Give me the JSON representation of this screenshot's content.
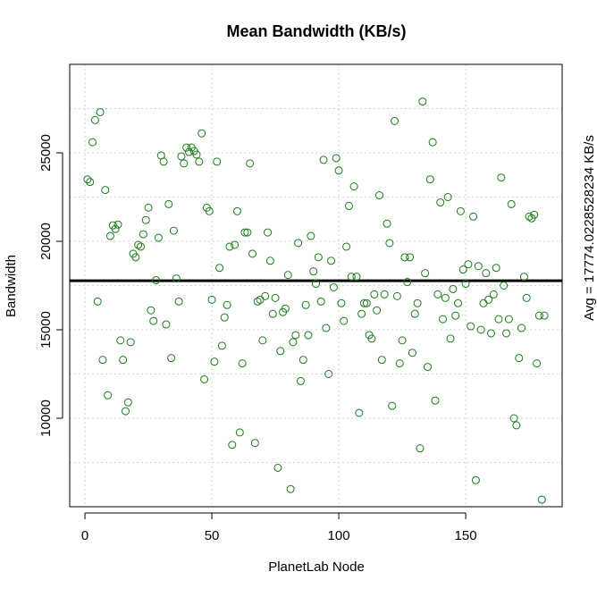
{
  "chart_data": {
    "type": "scatter",
    "title": "Mean Bandwidth (KB/s)",
    "xlabel": "PlanetLab Node",
    "ylabel": "Bandwidth",
    "xlim": [
      -6,
      188
    ],
    "ylim": [
      5000,
      30000
    ],
    "x_ticks": [
      0,
      50,
      100,
      150
    ],
    "y_ticks": [
      10000,
      15000,
      20000,
      25000
    ],
    "x_tick_labels": [
      "0",
      "50",
      "100",
      "150"
    ],
    "y_tick_labels": [
      "10000",
      "15000",
      "20000",
      "25000"
    ],
    "grid": true,
    "point_color": "#1a7a1a",
    "reference_line": {
      "value": 17774.0228528234,
      "label": "Avg = 17774.0228528234 KB/s",
      "color": "#000000"
    },
    "series": [
      {
        "points": [
          [
            1,
            23500
          ],
          [
            2,
            23350
          ],
          [
            3,
            25600
          ],
          [
            4,
            26850
          ],
          [
            5,
            16600
          ],
          [
            6,
            27300
          ],
          [
            7,
            13300
          ],
          [
            8,
            22900
          ],
          [
            9,
            11300
          ],
          [
            10,
            20300
          ],
          [
            11,
            20900
          ],
          [
            12,
            20700
          ],
          [
            13,
            20950
          ],
          [
            14,
            14400
          ],
          [
            15,
            13300
          ],
          [
            16,
            10400
          ],
          [
            17,
            10900
          ],
          [
            18,
            14300
          ],
          [
            19,
            19300
          ],
          [
            20,
            19100
          ],
          [
            21,
            19800
          ],
          [
            22,
            19700
          ],
          [
            23,
            20400
          ],
          [
            24,
            21200
          ],
          [
            25,
            21900
          ],
          [
            26,
            16100
          ],
          [
            27,
            15500
          ],
          [
            28,
            17800
          ],
          [
            29,
            20200
          ],
          [
            30,
            24850
          ],
          [
            31,
            24500
          ],
          [
            32,
            15300
          ],
          [
            33,
            22100
          ],
          [
            34,
            13400
          ],
          [
            35,
            20600
          ],
          [
            36,
            17900
          ],
          [
            37,
            16600
          ],
          [
            38,
            24800
          ],
          [
            39,
            24400
          ],
          [
            40,
            25300
          ],
          [
            41,
            25050
          ],
          [
            42,
            25300
          ],
          [
            43,
            25100
          ],
          [
            44,
            24900
          ],
          [
            45,
            24500
          ],
          [
            46,
            26100
          ],
          [
            47,
            12200
          ],
          [
            48,
            21900
          ],
          [
            49,
            21700
          ],
          [
            50,
            16700
          ],
          [
            51,
            13200
          ],
          [
            52,
            24500
          ],
          [
            53,
            18500
          ],
          [
            54,
            14100
          ],
          [
            55,
            15700
          ],
          [
            56,
            16400
          ],
          [
            57,
            19700
          ],
          [
            58,
            8500
          ],
          [
            59,
            19800
          ],
          [
            60,
            21700
          ],
          [
            61,
            9200
          ],
          [
            62,
            13100
          ],
          [
            63,
            20500
          ],
          [
            64,
            20500
          ],
          [
            65,
            24400
          ],
          [
            66,
            19300
          ],
          [
            67,
            8600
          ],
          [
            68,
            16600
          ],
          [
            69,
            16700
          ],
          [
            70,
            14400
          ],
          [
            71,
            16900
          ],
          [
            72,
            20500
          ],
          [
            73,
            18900
          ],
          [
            74,
            15900
          ],
          [
            75,
            16800
          ],
          [
            76,
            7200
          ],
          [
            77,
            13800
          ],
          [
            78,
            16000
          ],
          [
            79,
            16200
          ],
          [
            80,
            18100
          ],
          [
            81,
            6000
          ],
          [
            82,
            14300
          ],
          [
            83,
            14700
          ],
          [
            84,
            19900
          ],
          [
            85,
            12100
          ],
          [
            86,
            13300
          ],
          [
            87,
            16400
          ],
          [
            88,
            14700
          ],
          [
            89,
            20300
          ],
          [
            90,
            18300
          ],
          [
            91,
            17600
          ],
          [
            92,
            19100
          ],
          [
            93,
            16600
          ],
          [
            94,
            24600
          ],
          [
            95,
            15100
          ],
          [
            96,
            12500
          ],
          [
            97,
            18900
          ],
          [
            98,
            17400
          ],
          [
            99,
            24700
          ],
          [
            100,
            24000
          ],
          [
            101,
            16500
          ],
          [
            102,
            15500
          ],
          [
            103,
            19700
          ],
          [
            104,
            22000
          ],
          [
            105,
            18000
          ],
          [
            106,
            23100
          ],
          [
            107,
            18000
          ],
          [
            108,
            10300
          ],
          [
            109,
            15900
          ],
          [
            110,
            16500
          ],
          [
            111,
            16500
          ],
          [
            112,
            14700
          ],
          [
            113,
            14500
          ],
          [
            114,
            17000
          ],
          [
            115,
            16100
          ],
          [
            116,
            22600
          ],
          [
            117,
            13300
          ],
          [
            118,
            17000
          ],
          [
            119,
            21000
          ],
          [
            120,
            19900
          ],
          [
            121,
            10700
          ],
          [
            122,
            26800
          ],
          [
            123,
            16900
          ],
          [
            124,
            13100
          ],
          [
            125,
            14400
          ],
          [
            126,
            19100
          ],
          [
            127,
            17700
          ],
          [
            128,
            19100
          ],
          [
            129,
            13700
          ],
          [
            130,
            15900
          ],
          [
            131,
            16500
          ],
          [
            132,
            8300
          ],
          [
            133,
            27900
          ],
          [
            134,
            18200
          ],
          [
            135,
            12900
          ],
          [
            136,
            23500
          ],
          [
            137,
            25600
          ],
          [
            138,
            11000
          ],
          [
            139,
            17000
          ],
          [
            140,
            22200
          ],
          [
            141,
            15600
          ],
          [
            142,
            16800
          ],
          [
            143,
            22500
          ],
          [
            144,
            14500
          ],
          [
            145,
            17300
          ],
          [
            146,
            15800
          ],
          [
            147,
            16500
          ],
          [
            148,
            21700
          ],
          [
            149,
            18400
          ],
          [
            150,
            17600
          ],
          [
            151,
            18700
          ],
          [
            152,
            15200
          ],
          [
            153,
            21400
          ],
          [
            154,
            6500
          ],
          [
            155,
            18600
          ],
          [
            156,
            15000
          ],
          [
            157,
            16500
          ],
          [
            158,
            18200
          ],
          [
            159,
            16700
          ],
          [
            160,
            14800
          ],
          [
            161,
            17000
          ],
          [
            162,
            18500
          ],
          [
            163,
            15600
          ],
          [
            164,
            23600
          ],
          [
            165,
            17500
          ],
          [
            166,
            14800
          ],
          [
            167,
            15600
          ],
          [
            168,
            22100
          ],
          [
            169,
            10000
          ],
          [
            170,
            9600
          ],
          [
            171,
            13400
          ],
          [
            172,
            15100
          ],
          [
            173,
            18000
          ],
          [
            174,
            16800
          ],
          [
            175,
            21400
          ],
          [
            176,
            21300
          ],
          [
            177,
            21500
          ],
          [
            178,
            13100
          ],
          [
            179,
            15800
          ],
          [
            180,
            5400
          ],
          [
            181,
            15800
          ]
        ]
      }
    ]
  }
}
